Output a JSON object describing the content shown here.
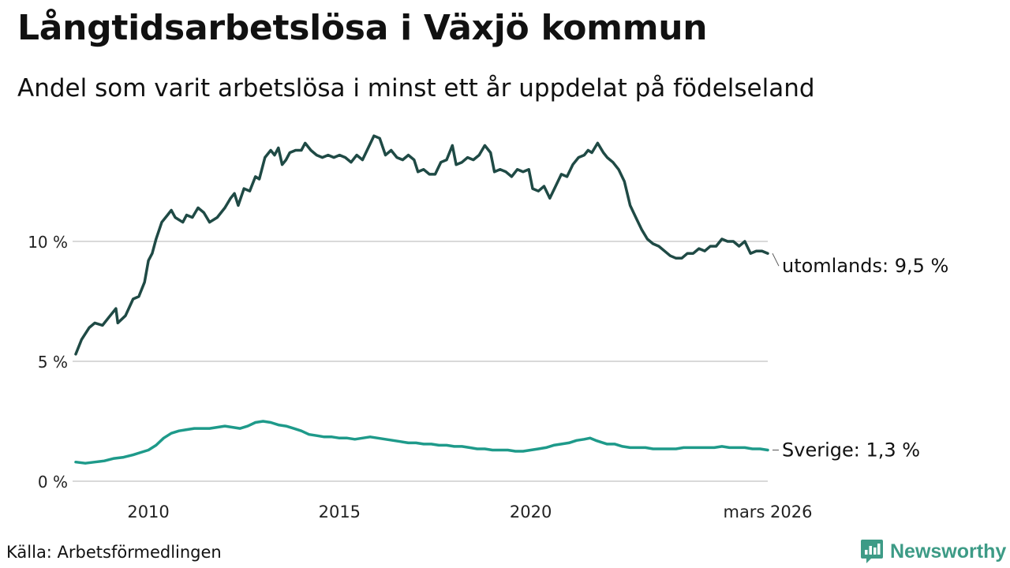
{
  "title": "Långtidsarbetslösa i Växjö kommun",
  "subtitle": "Andel som varit arbetslösa i minst ett år uppdelat på födelseland",
  "source": "Källa: Arbetsförmedlingen",
  "brand": {
    "name": "Newsworthy",
    "icon": "newsworthy-logo-icon",
    "color": "#3d9b86"
  },
  "chart_data": {
    "type": "line",
    "title": "Långtidsarbetslösa i Växjö kommun",
    "subtitle": "Andel som varit arbetslösa i minst ett år uppdelat på födelseland",
    "xlabel": "",
    "ylabel": "",
    "x_range": [
      2008.1,
      2026.2
    ],
    "ylim": [
      0,
      15
    ],
    "y_ticks": [
      {
        "value": 0,
        "label": "0 %"
      },
      {
        "value": 5,
        "label": "5 %"
      },
      {
        "value": 10,
        "label": "10 %"
      }
    ],
    "x_ticks": [
      {
        "value": 2010,
        "label": "2010"
      },
      {
        "value": 2015,
        "label": "2015"
      },
      {
        "value": 2020,
        "label": "2020"
      },
      {
        "value": 2026.2,
        "label": "mars 2026"
      }
    ],
    "grid": true,
    "series": [
      {
        "name": "utomlands",
        "end_label": "utomlands: 9,5 %",
        "color": "#1f4a45",
        "points": [
          [
            2008.1,
            5.3
          ],
          [
            2008.25,
            5.9
          ],
          [
            2008.45,
            6.4
          ],
          [
            2008.6,
            6.6
          ],
          [
            2008.8,
            6.5
          ],
          [
            2009.0,
            6.9
          ],
          [
            2009.15,
            7.2
          ],
          [
            2009.2,
            6.6
          ],
          [
            2009.4,
            6.9
          ],
          [
            2009.6,
            7.6
          ],
          [
            2009.75,
            7.7
          ],
          [
            2009.9,
            8.3
          ],
          [
            2010.0,
            9.2
          ],
          [
            2010.1,
            9.5
          ],
          [
            2010.2,
            10.1
          ],
          [
            2010.35,
            10.8
          ],
          [
            2010.5,
            11.1
          ],
          [
            2010.6,
            11.3
          ],
          [
            2010.7,
            11.0
          ],
          [
            2010.9,
            10.8
          ],
          [
            2011.0,
            11.1
          ],
          [
            2011.15,
            11.0
          ],
          [
            2011.3,
            11.4
          ],
          [
            2011.45,
            11.2
          ],
          [
            2011.6,
            10.8
          ],
          [
            2011.8,
            11.0
          ],
          [
            2012.0,
            11.4
          ],
          [
            2012.15,
            11.8
          ],
          [
            2012.25,
            12.0
          ],
          [
            2012.35,
            11.5
          ],
          [
            2012.5,
            12.2
          ],
          [
            2012.65,
            12.1
          ],
          [
            2012.8,
            12.7
          ],
          [
            2012.9,
            12.6
          ],
          [
            2013.05,
            13.5
          ],
          [
            2013.2,
            13.8
          ],
          [
            2013.3,
            13.6
          ],
          [
            2013.4,
            13.9
          ],
          [
            2013.5,
            13.2
          ],
          [
            2013.6,
            13.4
          ],
          [
            2013.7,
            13.7
          ],
          [
            2013.85,
            13.8
          ],
          [
            2014.0,
            13.8
          ],
          [
            2014.1,
            14.1
          ],
          [
            2014.25,
            13.8
          ],
          [
            2014.4,
            13.6
          ],
          [
            2014.55,
            13.5
          ],
          [
            2014.7,
            13.6
          ],
          [
            2014.85,
            13.5
          ],
          [
            2015.0,
            13.6
          ],
          [
            2015.15,
            13.5
          ],
          [
            2015.3,
            13.3
          ],
          [
            2015.45,
            13.6
          ],
          [
            2015.6,
            13.4
          ],
          [
            2015.75,
            13.9
          ],
          [
            2015.9,
            14.4
          ],
          [
            2016.05,
            14.3
          ],
          [
            2016.2,
            13.6
          ],
          [
            2016.35,
            13.8
          ],
          [
            2016.5,
            13.5
          ],
          [
            2016.65,
            13.4
          ],
          [
            2016.8,
            13.6
          ],
          [
            2016.95,
            13.4
          ],
          [
            2017.05,
            12.9
          ],
          [
            2017.2,
            13.0
          ],
          [
            2017.35,
            12.8
          ],
          [
            2017.5,
            12.8
          ],
          [
            2017.65,
            13.3
          ],
          [
            2017.8,
            13.4
          ],
          [
            2017.95,
            14.0
          ],
          [
            2018.05,
            13.2
          ],
          [
            2018.2,
            13.3
          ],
          [
            2018.35,
            13.5
          ],
          [
            2018.5,
            13.4
          ],
          [
            2018.65,
            13.6
          ],
          [
            2018.8,
            14.0
          ],
          [
            2018.95,
            13.7
          ],
          [
            2019.05,
            12.9
          ],
          [
            2019.2,
            13.0
          ],
          [
            2019.35,
            12.9
          ],
          [
            2019.5,
            12.7
          ],
          [
            2019.65,
            13.0
          ],
          [
            2019.8,
            12.9
          ],
          [
            2019.95,
            13.0
          ],
          [
            2020.05,
            12.2
          ],
          [
            2020.2,
            12.1
          ],
          [
            2020.35,
            12.3
          ],
          [
            2020.5,
            11.8
          ],
          [
            2020.65,
            12.3
          ],
          [
            2020.8,
            12.8
          ],
          [
            2020.95,
            12.7
          ],
          [
            2021.1,
            13.2
          ],
          [
            2021.25,
            13.5
          ],
          [
            2021.4,
            13.6
          ],
          [
            2021.5,
            13.8
          ],
          [
            2021.6,
            13.7
          ],
          [
            2021.75,
            14.1
          ],
          [
            2021.9,
            13.7
          ],
          [
            2022.0,
            13.5
          ],
          [
            2022.15,
            13.3
          ],
          [
            2022.3,
            13.0
          ],
          [
            2022.45,
            12.5
          ],
          [
            2022.6,
            11.5
          ],
          [
            2022.75,
            11.0
          ],
          [
            2022.9,
            10.5
          ],
          [
            2023.05,
            10.1
          ],
          [
            2023.2,
            9.9
          ],
          [
            2023.35,
            9.8
          ],
          [
            2023.5,
            9.6
          ],
          [
            2023.65,
            9.4
          ],
          [
            2023.8,
            9.3
          ],
          [
            2023.95,
            9.3
          ],
          [
            2024.1,
            9.5
          ],
          [
            2024.25,
            9.5
          ],
          [
            2024.4,
            9.7
          ],
          [
            2024.55,
            9.6
          ],
          [
            2024.7,
            9.8
          ],
          [
            2024.85,
            9.8
          ],
          [
            2025.0,
            10.1
          ],
          [
            2025.15,
            10.0
          ],
          [
            2025.3,
            10.0
          ],
          [
            2025.45,
            9.8
          ],
          [
            2025.6,
            10.0
          ],
          [
            2025.75,
            9.5
          ],
          [
            2025.9,
            9.6
          ],
          [
            2026.05,
            9.6
          ],
          [
            2026.2,
            9.5
          ]
        ]
      },
      {
        "name": "Sverige",
        "end_label": "Sverige: 1,3 %",
        "color": "#1e9a8a",
        "points": [
          [
            2008.1,
            0.8
          ],
          [
            2008.35,
            0.75
          ],
          [
            2008.6,
            0.8
          ],
          [
            2008.85,
            0.85
          ],
          [
            2009.1,
            0.95
          ],
          [
            2009.35,
            1.0
          ],
          [
            2009.6,
            1.1
          ],
          [
            2009.8,
            1.2
          ],
          [
            2010.0,
            1.3
          ],
          [
            2010.2,
            1.5
          ],
          [
            2010.4,
            1.8
          ],
          [
            2010.6,
            2.0
          ],
          [
            2010.8,
            2.1
          ],
          [
            2011.0,
            2.15
          ],
          [
            2011.2,
            2.2
          ],
          [
            2011.4,
            2.2
          ],
          [
            2011.6,
            2.2
          ],
          [
            2011.8,
            2.25
          ],
          [
            2012.0,
            2.3
          ],
          [
            2012.2,
            2.25
          ],
          [
            2012.4,
            2.2
          ],
          [
            2012.6,
            2.3
          ],
          [
            2012.8,
            2.45
          ],
          [
            2013.0,
            2.5
          ],
          [
            2013.2,
            2.45
          ],
          [
            2013.4,
            2.35
          ],
          [
            2013.6,
            2.3
          ],
          [
            2013.8,
            2.2
          ],
          [
            2014.0,
            2.1
          ],
          [
            2014.2,
            1.95
          ],
          [
            2014.4,
            1.9
          ],
          [
            2014.6,
            1.85
          ],
          [
            2014.8,
            1.85
          ],
          [
            2015.0,
            1.8
          ],
          [
            2015.2,
            1.8
          ],
          [
            2015.4,
            1.75
          ],
          [
            2015.6,
            1.8
          ],
          [
            2015.8,
            1.85
          ],
          [
            2016.0,
            1.8
          ],
          [
            2016.2,
            1.75
          ],
          [
            2016.4,
            1.7
          ],
          [
            2016.6,
            1.65
          ],
          [
            2016.8,
            1.6
          ],
          [
            2017.0,
            1.6
          ],
          [
            2017.2,
            1.55
          ],
          [
            2017.4,
            1.55
          ],
          [
            2017.6,
            1.5
          ],
          [
            2017.8,
            1.5
          ],
          [
            2018.0,
            1.45
          ],
          [
            2018.2,
            1.45
          ],
          [
            2018.4,
            1.4
          ],
          [
            2018.6,
            1.35
          ],
          [
            2018.8,
            1.35
          ],
          [
            2019.0,
            1.3
          ],
          [
            2019.2,
            1.3
          ],
          [
            2019.4,
            1.3
          ],
          [
            2019.6,
            1.25
          ],
          [
            2019.8,
            1.25
          ],
          [
            2020.0,
            1.3
          ],
          [
            2020.2,
            1.35
          ],
          [
            2020.4,
            1.4
          ],
          [
            2020.6,
            1.5
          ],
          [
            2020.8,
            1.55
          ],
          [
            2021.0,
            1.6
          ],
          [
            2021.2,
            1.7
          ],
          [
            2021.4,
            1.75
          ],
          [
            2021.55,
            1.8
          ],
          [
            2021.7,
            1.7
          ],
          [
            2021.9,
            1.6
          ],
          [
            2022.0,
            1.55
          ],
          [
            2022.2,
            1.55
          ],
          [
            2022.4,
            1.45
          ],
          [
            2022.6,
            1.4
          ],
          [
            2022.8,
            1.4
          ],
          [
            2023.0,
            1.4
          ],
          [
            2023.2,
            1.35
          ],
          [
            2023.4,
            1.35
          ],
          [
            2023.6,
            1.35
          ],
          [
            2023.8,
            1.35
          ],
          [
            2024.0,
            1.4
          ],
          [
            2024.2,
            1.4
          ],
          [
            2024.4,
            1.4
          ],
          [
            2024.6,
            1.4
          ],
          [
            2024.8,
            1.4
          ],
          [
            2025.0,
            1.45
          ],
          [
            2025.2,
            1.4
          ],
          [
            2025.4,
            1.4
          ],
          [
            2025.6,
            1.4
          ],
          [
            2025.8,
            1.35
          ],
          [
            2026.0,
            1.35
          ],
          [
            2026.2,
            1.3
          ]
        ]
      }
    ]
  }
}
